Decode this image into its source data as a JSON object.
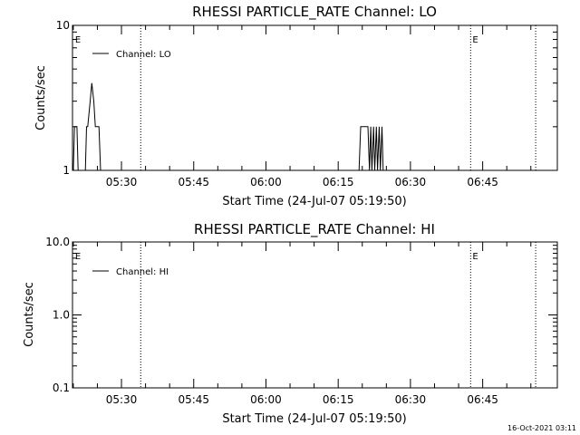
{
  "footer": {
    "timestamp": "16-Oct-2021 03:11"
  },
  "chart_data": [
    {
      "type": "line",
      "title": "RHESSI PARTICLE_RATE Channel: LO",
      "xlabel": "Start Time (24-Jul-07 05:19:50)",
      "ylabel": "Counts/sec",
      "yscale": "log",
      "xlim": [
        "05:19:50",
        "07:00:30"
      ],
      "ylim": [
        1,
        10
      ],
      "xticks": [
        "05:30",
        "05:45",
        "06:00",
        "06:15",
        "06:30",
        "06:45"
      ],
      "ytick_labels": [
        "1",
        "10"
      ],
      "legend": {
        "label": "Channel: LO",
        "position": "top-left"
      },
      "event_markers": [
        {
          "time": "05:20:00",
          "label": "E"
        },
        {
          "time": "06:42:30",
          "label": "E"
        }
      ],
      "vlines": [
        "05:34:00",
        "06:42:30",
        "06:56:00"
      ],
      "series": [
        {
          "name": "Channel: LO",
          "color": "#000000",
          "points": [
            [
              "05:20:00",
              1
            ],
            [
              "05:20:15",
              2
            ],
            [
              "05:20:45",
              2
            ],
            [
              "05:21:00",
              1
            ],
            [
              "05:22:30",
              1
            ],
            [
              "05:22:45",
              2
            ],
            [
              "05:23:00",
              2
            ],
            [
              "05:23:30",
              3
            ],
            [
              "05:23:50",
              4
            ],
            [
              "05:24:15",
              3
            ],
            [
              "05:24:35",
              2
            ],
            [
              "05:25:20",
              2
            ],
            [
              "05:25:40",
              1
            ],
            [
              "06:19:20",
              1
            ],
            [
              "06:19:40",
              2
            ],
            [
              "06:21:10",
              2
            ],
            [
              "06:21:30",
              1
            ],
            [
              "06:21:45",
              2
            ],
            [
              "06:22:00",
              1
            ],
            [
              "06:22:20",
              2
            ],
            [
              "06:22:35",
              1
            ],
            [
              "06:22:55",
              2
            ],
            [
              "06:23:10",
              1
            ],
            [
              "06:23:30",
              2
            ],
            [
              "06:23:45",
              1
            ],
            [
              "06:24:05",
              2
            ],
            [
              "06:24:20",
              1
            ]
          ]
        }
      ]
    },
    {
      "type": "line",
      "title": "RHESSI PARTICLE_RATE Channel: HI",
      "xlabel": "Start Time (24-Jul-07 05:19:50)",
      "ylabel": "Counts/sec",
      "yscale": "log",
      "xlim": [
        "05:19:50",
        "07:00:30"
      ],
      "ylim": [
        0.1,
        10
      ],
      "xticks": [
        "05:30",
        "05:45",
        "06:00",
        "06:15",
        "06:30",
        "06:45"
      ],
      "ytick_labels": [
        "0.1",
        "1.0",
        "10.0"
      ],
      "legend": {
        "label": "Channel: HI",
        "position": "top-left"
      },
      "event_markers": [
        {
          "time": "05:20:00",
          "label": "E"
        },
        {
          "time": "06:42:30",
          "label": "E"
        }
      ],
      "vlines": [
        "05:34:00",
        "06:42:30",
        "06:56:00"
      ],
      "series": [
        {
          "name": "Channel: HI",
          "color": "#000000",
          "points": []
        }
      ]
    }
  ]
}
